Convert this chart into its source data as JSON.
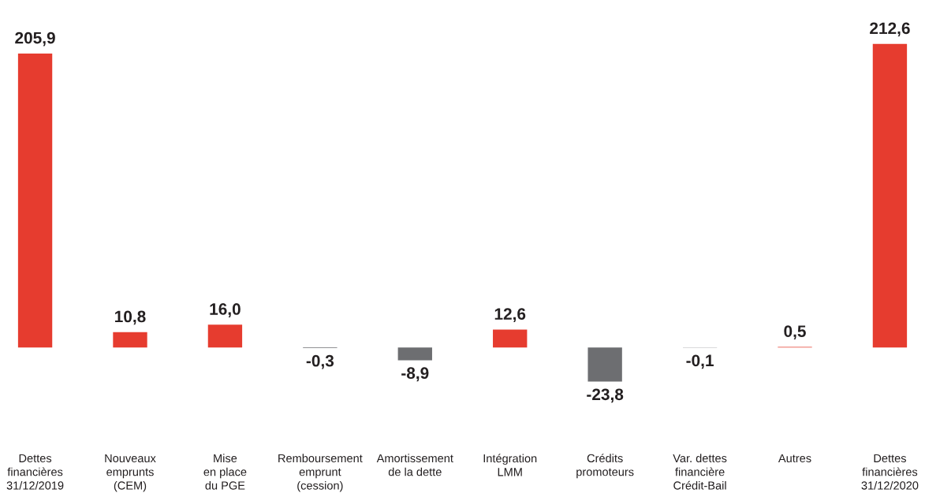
{
  "chart_data": {
    "type": "bar",
    "categories": [
      "Dettes\nfinancières\n31/12/2019",
      "Nouveaux\nemprunts\n(CEM)",
      "Mise\nen place\ndu PGE",
      "Remboursement\nemprunt\n(cession)",
      "Amortissement\nde la dette",
      "Intégration\nLMM",
      "Crédits\npromoteurs",
      "Var. dettes\nfinancière\nCrédit-Bail",
      "Autres",
      "Dettes\nfinancières\n31/12/2020"
    ],
    "values": [
      205.9,
      10.8,
      16.0,
      -0.3,
      -8.9,
      12.6,
      -23.8,
      -0.1,
      0.5,
      212.6
    ],
    "value_labels": [
      "205,9",
      "10,8",
      "16,0",
      "-0,3",
      "-8,9",
      "12,6",
      "-23,8",
      "-0,1",
      "0,5",
      "212,6"
    ],
    "colors": [
      "#e63c2f",
      "#e63c2f",
      "#e63c2f",
      "#6d6e71",
      "#6d6e71",
      "#e63c2f",
      "#6d6e71",
      "#6d6e71",
      "#e63c2f",
      "#e63c2f"
    ],
    "grid": false
  }
}
